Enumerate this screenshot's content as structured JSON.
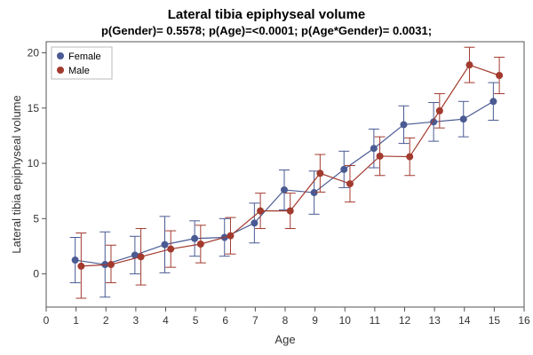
{
  "chart_data": {
    "type": "line",
    "title": "Lateral tibia epiphyseal volume",
    "subtitle": "p(Gender)= 0.5578; p(Age)=<0.0001; p(Age*Gender)= 0.0031;",
    "xlabel": "Age",
    "ylabel": "Lateral tibia epiphyseal volume",
    "xlim": [
      0,
      16
    ],
    "ylim": [
      -3,
      21
    ],
    "xticks": [
      0,
      1,
      2,
      3,
      4,
      5,
      6,
      7,
      8,
      9,
      10,
      11,
      12,
      13,
      14,
      15,
      16
    ],
    "yticks": [
      0,
      5,
      10,
      15,
      20
    ],
    "grid": false,
    "legend_position": "top-left",
    "series": [
      {
        "name": "Female",
        "color": "#4a5a93",
        "x": [
          0.97,
          1.97,
          2.97,
          3.97,
          4.97,
          5.97,
          6.97,
          7.97,
          8.97,
          9.97,
          10.97,
          11.97,
          12.97,
          13.97,
          14.97
        ],
        "y": [
          1.25,
          0.85,
          1.7,
          2.65,
          3.2,
          3.3,
          4.6,
          7.6,
          7.35,
          9.45,
          11.35,
          13.5,
          13.75,
          14.0,
          15.6
        ],
        "lower": [
          -0.8,
          -2.1,
          0.0,
          0.1,
          1.6,
          1.6,
          2.8,
          5.8,
          5.4,
          7.8,
          9.6,
          11.8,
          12.0,
          12.4,
          13.9
        ],
        "upper": [
          3.3,
          3.8,
          3.4,
          5.2,
          4.8,
          5.0,
          6.4,
          9.4,
          9.3,
          11.1,
          13.1,
          15.2,
          15.5,
          15.6,
          17.3
        ]
      },
      {
        "name": "Male",
        "color": "#a23a2e",
        "x": [
          1.17,
          2.17,
          3.17,
          4.17,
          5.17,
          6.17,
          7.17,
          8.17,
          9.17,
          10.17,
          11.17,
          12.17,
          13.17,
          14.17,
          15.17
        ],
        "y": [
          0.7,
          0.85,
          1.55,
          2.25,
          2.7,
          3.45,
          5.7,
          5.7,
          9.1,
          8.15,
          10.65,
          10.6,
          14.75,
          18.9,
          17.95
        ],
        "lower": [
          -2.2,
          -0.8,
          -1.0,
          0.6,
          1.0,
          1.8,
          4.1,
          4.1,
          7.4,
          6.5,
          8.9,
          8.9,
          13.2,
          17.3,
          16.3
        ],
        "upper": [
          3.7,
          2.6,
          4.1,
          3.9,
          4.4,
          5.1,
          7.3,
          7.3,
          10.8,
          9.8,
          12.4,
          12.3,
          16.3,
          20.5,
          19.6
        ]
      }
    ]
  }
}
